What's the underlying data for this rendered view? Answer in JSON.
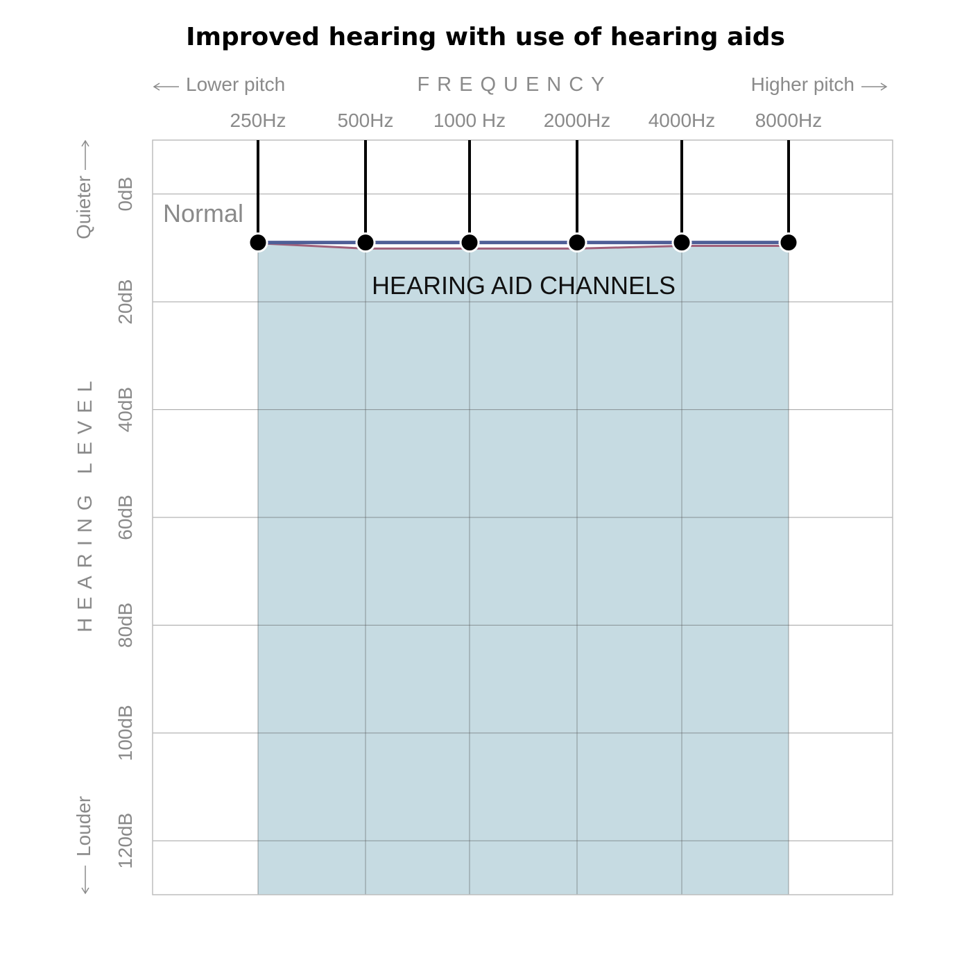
{
  "chart_data": {
    "type": "line",
    "title": "Improved hearing with use of hearing aids",
    "x_axis": {
      "label": "FREQUENCY",
      "left_note": "Lower pitch",
      "right_note": "Higher pitch",
      "categories": [
        "250Hz",
        "500Hz",
        "1000 Hz",
        "2000Hz",
        "4000Hz",
        "8000Hz"
      ]
    },
    "y_axis": {
      "label": "HEARING LEVEL",
      "top_note": "Quieter",
      "bottom_note": "Louder",
      "tick_labels": [
        "0dB",
        "20dB",
        "40dB",
        "60dB",
        "80dB",
        "100dB",
        "120dB"
      ],
      "ticks": [
        0,
        20,
        40,
        60,
        80,
        100,
        120
      ],
      "ylim": [
        -10,
        130
      ],
      "inverted": true
    },
    "region_labels": {
      "normal": "Normal",
      "channels": "HEARING AID CHANNELS"
    },
    "series": [
      {
        "values": [
          9,
          9,
          9,
          9,
          9,
          9
        ]
      }
    ],
    "band_upper": [
      9,
      10,
      10,
      10,
      9.5,
      9.5
    ],
    "band_lower": [
      130,
      130,
      130,
      130,
      130,
      130
    ],
    "grid": true,
    "colors": {
      "band_fill": "#c6dbe2",
      "line": "#4f5f97",
      "line_accent": "#a0607a",
      "marker": "#000000",
      "text_grey": "#8a8a8a"
    }
  }
}
